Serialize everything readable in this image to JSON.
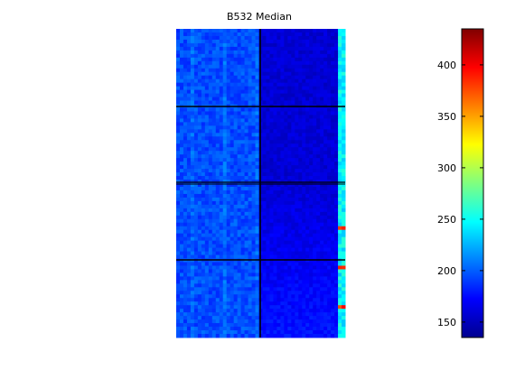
{
  "chart_data": {
    "type": "heatmap",
    "title": "B532 Median",
    "xlabel": "",
    "ylabel": "",
    "colormap": "jet",
    "colorbar": {
      "range": [
        135,
        435
      ],
      "ticks": [
        150,
        200,
        250,
        300,
        350,
        400
      ],
      "tick_labels": [
        "150",
        "200",
        "250",
        "300",
        "350",
        "400"
      ]
    },
    "block_grid": {
      "columns": 2,
      "rows": 4,
      "left_block_level": 195,
      "right_block_level": 160,
      "right_edge_column_level": 240
    },
    "axes": {
      "visible": false
    }
  }
}
